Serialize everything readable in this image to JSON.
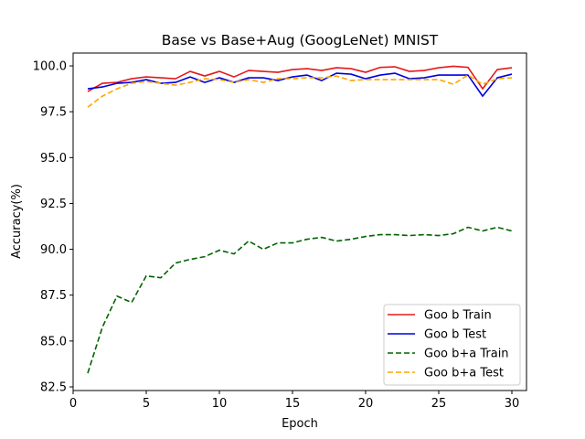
{
  "chart_data": {
    "type": "line",
    "title": "Base vs Base+Aug (GoogLeNet) MNIST",
    "xlabel": "Epoch",
    "ylabel": "Accuracy(%)",
    "xlim": [
      0,
      31
    ],
    "ylim": [
      82.3,
      100.7
    ],
    "xticks": [
      0,
      5,
      10,
      15,
      20,
      25,
      30
    ],
    "yticks": [
      82.5,
      85.0,
      87.5,
      90.0,
      92.5,
      95.0,
      97.5,
      100.0
    ],
    "xtick_labels": [
      "0",
      "5",
      "10",
      "15",
      "20",
      "25",
      "30"
    ],
    "ytick_labels": [
      "82.5",
      "85.0",
      "87.5",
      "90.0",
      "92.5",
      "95.0",
      "97.5",
      "100.0"
    ],
    "grid": false,
    "legend_position": "lower-right",
    "x": [
      1,
      2,
      3,
      4,
      5,
      6,
      7,
      8,
      9,
      10,
      11,
      12,
      13,
      14,
      15,
      16,
      17,
      18,
      19,
      20,
      21,
      22,
      23,
      24,
      25,
      26,
      27,
      28,
      29,
      30
    ],
    "series": [
      {
        "name": "Goo b Train",
        "color": "#e31a1c",
        "dash": "solid",
        "values": [
          98.6,
          99.05,
          99.1,
          99.3,
          99.4,
          99.35,
          99.3,
          99.7,
          99.45,
          99.7,
          99.4,
          99.75,
          99.7,
          99.65,
          99.8,
          99.85,
          99.75,
          99.9,
          99.85,
          99.65,
          99.92,
          99.95,
          99.7,
          99.75,
          99.9,
          99.98,
          99.92,
          98.75,
          99.8,
          99.9
        ]
      },
      {
        "name": "Goo b Test",
        "color": "#0000e0",
        "dash": "solid",
        "values": [
          98.75,
          98.85,
          99.05,
          99.1,
          99.25,
          99.05,
          99.1,
          99.4,
          99.1,
          99.35,
          99.1,
          99.35,
          99.35,
          99.2,
          99.4,
          99.5,
          99.2,
          99.6,
          99.55,
          99.3,
          99.5,
          99.6,
          99.3,
          99.35,
          99.5,
          99.5,
          99.5,
          98.35,
          99.35,
          99.55
        ]
      },
      {
        "name": "Goo b+a Train",
        "color": "#006400",
        "dash": "dashed",
        "values": [
          83.25,
          85.75,
          87.45,
          87.1,
          88.55,
          88.45,
          89.25,
          89.45,
          89.6,
          89.95,
          89.75,
          90.45,
          90.0,
          90.35,
          90.35,
          90.55,
          90.65,
          90.45,
          90.55,
          90.7,
          90.8,
          90.8,
          90.75,
          90.8,
          90.75,
          90.85,
          91.2,
          91.0,
          91.2,
          91.0
        ]
      },
      {
        "name": "Goo b+a Test",
        "color": "#ffa500",
        "dash": "dashed",
        "values": [
          97.75,
          98.35,
          98.75,
          99.05,
          99.15,
          99.05,
          98.95,
          99.1,
          99.3,
          99.25,
          99.1,
          99.25,
          99.1,
          99.3,
          99.3,
          99.35,
          99.35,
          99.45,
          99.2,
          99.25,
          99.25,
          99.25,
          99.25,
          99.25,
          99.25,
          99.0,
          99.5,
          99.0,
          99.3,
          99.35
        ]
      }
    ]
  }
}
